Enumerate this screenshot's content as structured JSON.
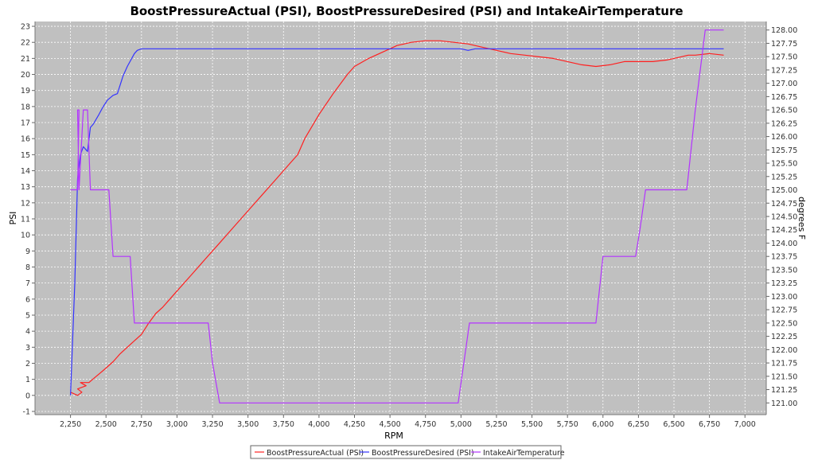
{
  "chart_data": {
    "type": "line",
    "title": "BoostPressureActual (PSI), BoostPressureDesired (PSI) and IntakeAirTemperature",
    "xlabel": "RPM",
    "ylabel": "PSI",
    "y2label": "degrees F",
    "xlim": [
      2000,
      7150
    ],
    "ylim": [
      -1.2,
      23.3
    ],
    "y2lim": [
      120.78,
      128.16
    ],
    "x_ticks": [
      "2,250",
      "2,500",
      "2,750",
      "3,000",
      "3,250",
      "3,500",
      "3,750",
      "4,000",
      "4,250",
      "4,500",
      "4,750",
      "5,000",
      "5,250",
      "5,500",
      "5,750",
      "6,000",
      "6,250",
      "6,500",
      "6,750",
      "7,000"
    ],
    "y_ticks": [
      "-1",
      "0",
      "1",
      "2",
      "3",
      "4",
      "5",
      "6",
      "7",
      "8",
      "9",
      "10",
      "11",
      "12",
      "13",
      "14",
      "15",
      "16",
      "17",
      "18",
      "19",
      "20",
      "21",
      "22",
      "23"
    ],
    "y2_ticks": [
      "121.00",
      "121.25",
      "121.50",
      "121.75",
      "122.00",
      "122.25",
      "122.50",
      "122.75",
      "123.00",
      "123.25",
      "123.50",
      "123.75",
      "124.00",
      "124.25",
      "124.50",
      "124.75",
      "125.00",
      "125.25",
      "125.50",
      "125.75",
      "126.00",
      "126.25",
      "126.50",
      "126.75",
      "127.00",
      "127.25",
      "127.50",
      "127.75",
      "128.00"
    ],
    "grid": true,
    "legend_position": "bottom",
    "colors": {
      "plot_bg": "#c0c0c0",
      "grid": "#ffffff",
      "actual": "#ff2020",
      "desired": "#3333ff",
      "temp": "#b333ff"
    },
    "series": [
      {
        "name": "BoostPressureActual (PSI)",
        "axis": "left",
        "x": [
          2250,
          2300,
          2330,
          2300,
          2360,
          2320,
          2380,
          2420,
          2460,
          2500,
          2550,
          2600,
          2650,
          2700,
          2750,
          2800,
          2850,
          2900,
          2950,
          3000,
          3100,
          3200,
          3250,
          3300,
          3400,
          3500,
          3600,
          3700,
          3800,
          3850,
          3900,
          4000,
          4100,
          4200,
          4250,
          4350,
          4450,
          4550,
          4650,
          4750,
          4850,
          4950,
          5050,
          5150,
          5250,
          5350,
          5450,
          5550,
          5650,
          5750,
          5850,
          5950,
          6050,
          6150,
          6250,
          6350,
          6450,
          6550,
          6600,
          6650,
          6750,
          6850
        ],
        "y": [
          0.2,
          0.0,
          0.2,
          0.4,
          0.6,
          0.8,
          0.8,
          1.1,
          1.4,
          1.7,
          2.1,
          2.6,
          3.0,
          3.4,
          3.8,
          4.5,
          5.1,
          5.5,
          6.0,
          6.5,
          7.5,
          8.5,
          9.0,
          9.5,
          10.5,
          11.5,
          12.5,
          13.5,
          14.5,
          15.0,
          16.0,
          17.5,
          18.8,
          20.0,
          20.5,
          21.0,
          21.4,
          21.8,
          22.0,
          22.1,
          22.1,
          22.0,
          21.9,
          21.7,
          21.5,
          21.3,
          21.2,
          21.1,
          21.0,
          20.8,
          20.6,
          20.5,
          20.6,
          20.8,
          20.8,
          20.8,
          20.9,
          21.1,
          21.2,
          21.2,
          21.3,
          21.2
        ]
      },
      {
        "name": "BoostPressureDesired (PSI)",
        "axis": "left",
        "x": [
          2250,
          2280,
          2300,
          2320,
          2340,
          2370,
          2390,
          2410,
          2450,
          2480,
          2510,
          2550,
          2580,
          2620,
          2650,
          2700,
          2720,
          2750,
          2800,
          3000,
          3500,
          4000,
          4500,
          4900,
          5000,
          5050,
          5100,
          5200,
          5500,
          6000,
          6500,
          6600,
          6700,
          6850
        ],
        "y": [
          0.0,
          7.0,
          13.5,
          15.0,
          15.5,
          15.2,
          16.7,
          16.9,
          17.5,
          18.0,
          18.4,
          18.7,
          18.8,
          19.9,
          20.5,
          21.3,
          21.5,
          21.6,
          21.6,
          21.6,
          21.6,
          21.6,
          21.6,
          21.6,
          21.6,
          21.5,
          21.6,
          21.6,
          21.6,
          21.6,
          21.6,
          21.6,
          21.6,
          21.6
        ]
      },
      {
        "name": "IntakeAirTemperature",
        "axis": "right",
        "x": [
          2250,
          2300,
          2310,
          2300,
          2310,
          2340,
          2370,
          2390,
          2400,
          2460,
          2520,
          2550,
          2570,
          2650,
          2670,
          2700,
          2750,
          2800,
          3000,
          3220,
          3250,
          3300,
          4000,
          4980,
          5060,
          5500,
          5920,
          5950,
          6000,
          6230,
          6260,
          6300,
          6400,
          6590,
          6600,
          6650,
          6720,
          6750,
          6850
        ],
        "y": [
          125.0,
          125.0,
          126.5,
          126.5,
          125.0,
          126.5,
          126.5,
          125.0,
          125.0,
          125.0,
          125.0,
          123.75,
          123.75,
          123.75,
          123.75,
          122.5,
          122.5,
          122.5,
          122.5,
          122.5,
          121.75,
          121.0,
          121.0,
          121.0,
          122.5,
          122.5,
          122.5,
          122.5,
          123.75,
          123.75,
          124.25,
          125.0,
          125.0,
          125.0,
          125.25,
          126.5,
          128.0,
          128.0,
          128.0
        ]
      }
    ]
  }
}
